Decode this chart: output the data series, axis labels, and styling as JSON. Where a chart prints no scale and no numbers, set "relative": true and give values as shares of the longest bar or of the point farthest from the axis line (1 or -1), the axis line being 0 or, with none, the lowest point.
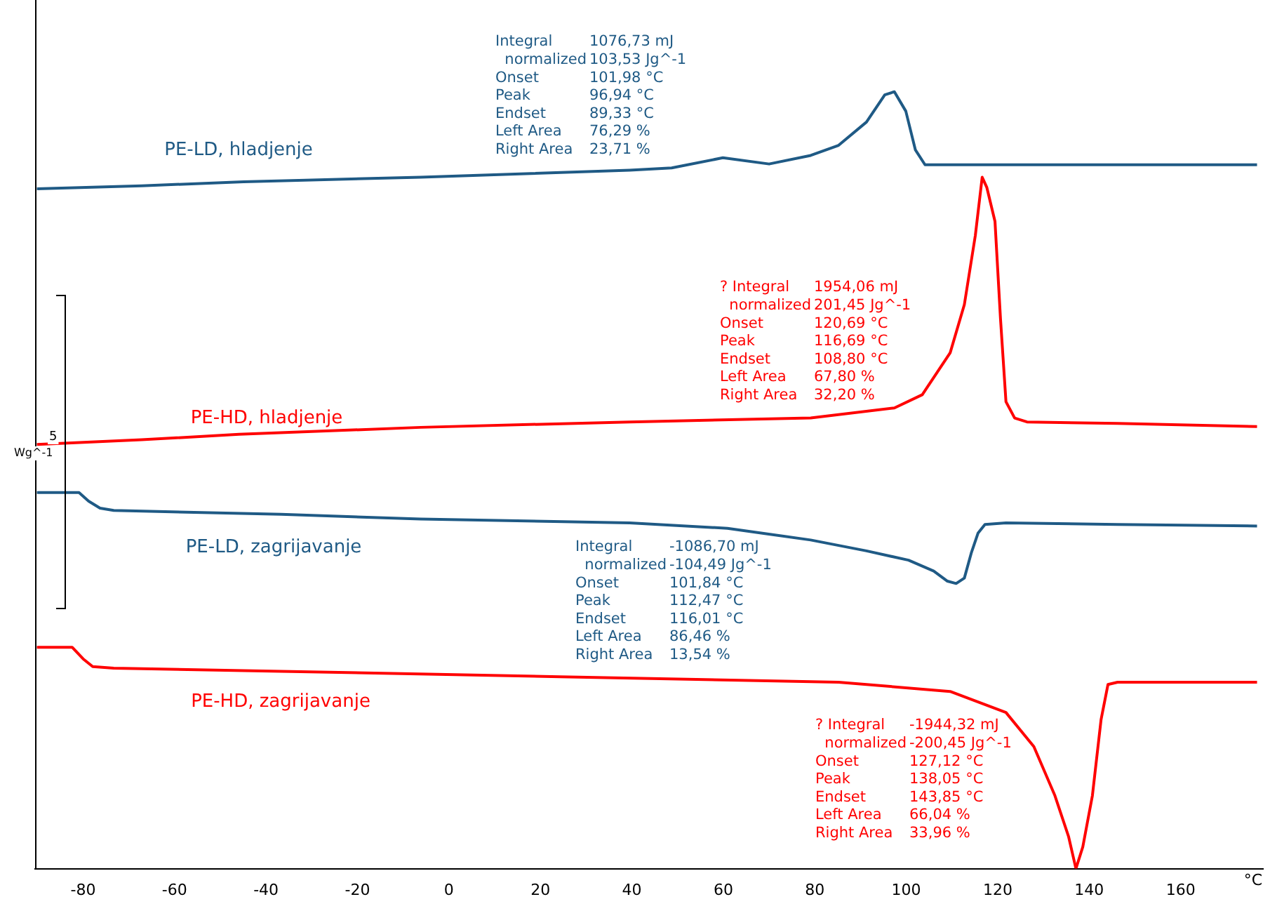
{
  "chart_data": {
    "type": "line",
    "relative": true,
    "xlabel": "°C",
    "xlim": [
      -90.5,
      178
    ],
    "xticks": [
      -80,
      -60,
      -40,
      -20,
      0,
      20,
      40,
      60,
      80,
      100,
      120,
      140,
      160
    ],
    "grid": false,
    "legend": false,
    "marker": "none",
    "line_style": "solid",
    "series": [
      {
        "name": "PE-LD, hladjenje",
        "color": "#1f5a85",
        "x": [
          -90.1,
          -67.2,
          -44.9,
          -6.2,
          39.5,
          48.7,
          59.9,
          70.0,
          79.1,
          85.2,
          91.3,
          95.3,
          97.4,
          99.9,
          102.0,
          104.1,
          115.7,
          146.2,
          176.7
        ],
        "values": [
          0.875,
          0.879,
          0.884,
          0.89,
          0.899,
          0.902,
          0.915,
          0.907,
          0.918,
          0.931,
          0.961,
          0.996,
          1.0,
          0.975,
          0.925,
          0.906,
          0.906,
          0.906,
          0.906
        ]
      },
      {
        "name": "PE-HD, hladjenje",
        "color": "#ff0000",
        "x": [
          -90.1,
          -67.2,
          -45.9,
          -6.2,
          39.5,
          79.1,
          97.4,
          103.5,
          109.6,
          112.7,
          115.1,
          116.6,
          117.6,
          119.4,
          120.6,
          121.8,
          123.7,
          126.4,
          146.2,
          176.7
        ],
        "values": [
          0.546,
          0.552,
          0.559,
          0.568,
          0.575,
          0.58,
          0.593,
          0.61,
          0.664,
          0.726,
          0.815,
          0.89,
          0.877,
          0.833,
          0.708,
          0.601,
          0.58,
          0.575,
          0.573,
          0.569
        ]
      },
      {
        "name": "PE-LD, zagrijavanje",
        "color": "#1f5a85",
        "x": [
          -90.1,
          -80.9,
          -78.8,
          -76.3,
          -73.3,
          -36.7,
          -6.2,
          39.5,
          60.9,
          79.1,
          91.3,
          100.5,
          106.0,
          109.0,
          110.9,
          112.7,
          114.2,
          115.7,
          117.2,
          121.8,
          146.2,
          176.7
        ],
        "values": [
          0.484,
          0.484,
          0.473,
          0.464,
          0.461,
          0.456,
          0.45,
          0.445,
          0.438,
          0.423,
          0.409,
          0.397,
          0.383,
          0.37,
          0.367,
          0.374,
          0.406,
          0.432,
          0.443,
          0.445,
          0.443,
          0.441
        ]
      },
      {
        "name": "PE-HD, zagrijavanje",
        "color": "#ff0000",
        "x": [
          -90.1,
          -82.4,
          -80.0,
          -77.9,
          -73.3,
          -36.7,
          24.3,
          85.2,
          109.6,
          121.8,
          127.9,
          132.5,
          135.5,
          137.1,
          138.6,
          140.7,
          142.6,
          144.1,
          146.2,
          158.4,
          176.7
        ],
        "values": [
          0.285,
          0.285,
          0.27,
          0.26,
          0.258,
          0.254,
          0.247,
          0.24,
          0.228,
          0.201,
          0.157,
          0.094,
          0.041,
          0.0,
          0.028,
          0.094,
          0.192,
          0.237,
          0.24,
          0.24,
          0.24
        ]
      }
    ],
    "annotations": [
      "Integral\t1076,73 mJ\n  normalized\t103,53 Jg^-1\nOnset\t101,98 °C\nPeak\t96,94 °C\nEndset\t89,33 °C\nLeft Area\t76,29 %\nRight Area\t23,71 %",
      "? Integral\t1954,06 mJ\n  normalized\t201,45 Jg^-1\nOnset\t120,69 °C\nPeak\t116,69 °C\nEndset\t108,80 °C\nLeft Area\t67,80 %\nRight Area\t32,20 %",
      "Integral\t-1086,70 mJ\n  normalized\t-104,49 Jg^-1\nOnset\t101,84 °C\nPeak\t112,47 °C\nEndset\t116,01 °C\nLeft Area\t86,46 %\nRight Area\t13,54 %",
      "? Integral\t-1944,32 mJ\n  normalized\t-200,45 Jg^-1\nOnset\t127,12 °C\nPeak\t138,05 °C\nEndset\t143,85 °C\nLeft Area\t66,04 %\nRight Area\t33,96 %",
      "5",
      "Wg^-1"
    ]
  }
}
